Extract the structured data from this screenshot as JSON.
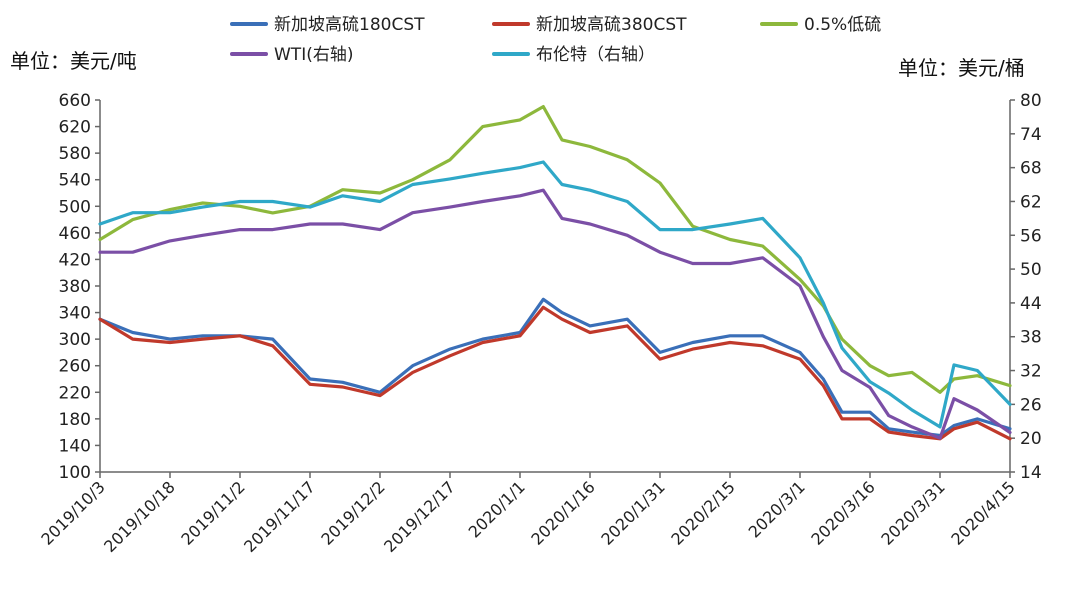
{
  "chart_data": {
    "type": "line",
    "y_left_unit": "单位：美元/吨",
    "y_right_unit": "单位：美元/桶",
    "ylim_left": [
      100,
      660
    ],
    "ylim_right": [
      14,
      80
    ],
    "y_left_ticks": [
      "660",
      "620",
      "580",
      "540",
      "500",
      "460",
      "420",
      "380",
      "340",
      "300",
      "260",
      "220",
      "180",
      "140",
      "100"
    ],
    "y_right_ticks": [
      "80",
      "74",
      "68",
      "62",
      "56",
      "50",
      "44",
      "38",
      "32",
      "26",
      "20",
      "14"
    ],
    "x_range": [
      "2019-10-03",
      "2020-04-15"
    ],
    "x_ticks": [
      "2019/10/3",
      "2019/10/18",
      "2019/11/2",
      "2019/11/17",
      "2019/12/2",
      "2019/12/17",
      "2020/1/1",
      "2020/1/16",
      "2020/1/31",
      "2020/2/15",
      "2020/3/1",
      "2020/3/16",
      "2020/3/31",
      "2020/4/15"
    ],
    "x": [
      "2019-10-03",
      "2019-10-10",
      "2019-10-18",
      "2019-10-25",
      "2019-11-02",
      "2019-11-09",
      "2019-11-17",
      "2019-11-24",
      "2019-12-02",
      "2019-12-09",
      "2019-12-17",
      "2019-12-24",
      "2020-01-01",
      "2020-01-06",
      "2020-01-10",
      "2020-01-16",
      "2020-01-24",
      "2020-01-31",
      "2020-02-07",
      "2020-02-15",
      "2020-02-22",
      "2020-03-01",
      "2020-03-06",
      "2020-03-10",
      "2020-03-16",
      "2020-03-20",
      "2020-03-25",
      "2020-03-31",
      "2020-04-03",
      "2020-04-08",
      "2020-04-15"
    ],
    "series": [
      {
        "name": "新加坡高硫180CST",
        "axis": "left",
        "color": "#3a6fb8",
        "values": [
          330,
          310,
          300,
          305,
          305,
          300,
          240,
          235,
          220,
          260,
          285,
          300,
          310,
          360,
          340,
          320,
          330,
          280,
          295,
          305,
          305,
          280,
          240,
          190,
          190,
          165,
          160,
          155,
          170,
          180,
          165
        ]
      },
      {
        "name": "新加坡高硫380CST",
        "axis": "left",
        "color": "#c0392b",
        "values": [
          330,
          300,
          295,
          300,
          305,
          290,
          232,
          228,
          215,
          250,
          275,
          295,
          305,
          348,
          330,
          310,
          320,
          270,
          285,
          295,
          290,
          270,
          230,
          180,
          180,
          160,
          155,
          150,
          165,
          175,
          150
        ]
      },
      {
        "name": "0.5%低硫",
        "axis": "left",
        "color": "#8db83c",
        "values": [
          450,
          480,
          495,
          505,
          500,
          490,
          500,
          525,
          520,
          540,
          570,
          620,
          630,
          650,
          600,
          590,
          570,
          535,
          470,
          450,
          440,
          390,
          350,
          300,
          260,
          245,
          250,
          220,
          240,
          245,
          230
        ]
      },
      {
        "name": "WTI(右轴)",
        "axis": "right",
        "color": "#7b4fa6",
        "values": [
          53,
          53,
          55,
          56,
          57,
          57,
          58,
          58,
          57,
          60,
          61,
          62,
          63,
          64,
          59,
          58,
          56,
          53,
          51,
          51,
          52,
          47,
          38,
          32,
          29,
          24,
          22,
          20,
          27,
          25,
          21
        ]
      },
      {
        "name": "布伦特（右轴）",
        "axis": "right",
        "color": "#2fa8c8",
        "values": [
          58,
          60,
          60,
          61,
          62,
          62,
          61,
          63,
          62,
          65,
          66,
          67,
          68,
          69,
          65,
          64,
          62,
          57,
          57,
          58,
          59,
          52,
          44,
          36,
          30,
          28,
          25,
          22,
          33,
          32,
          26
        ]
      }
    ]
  }
}
